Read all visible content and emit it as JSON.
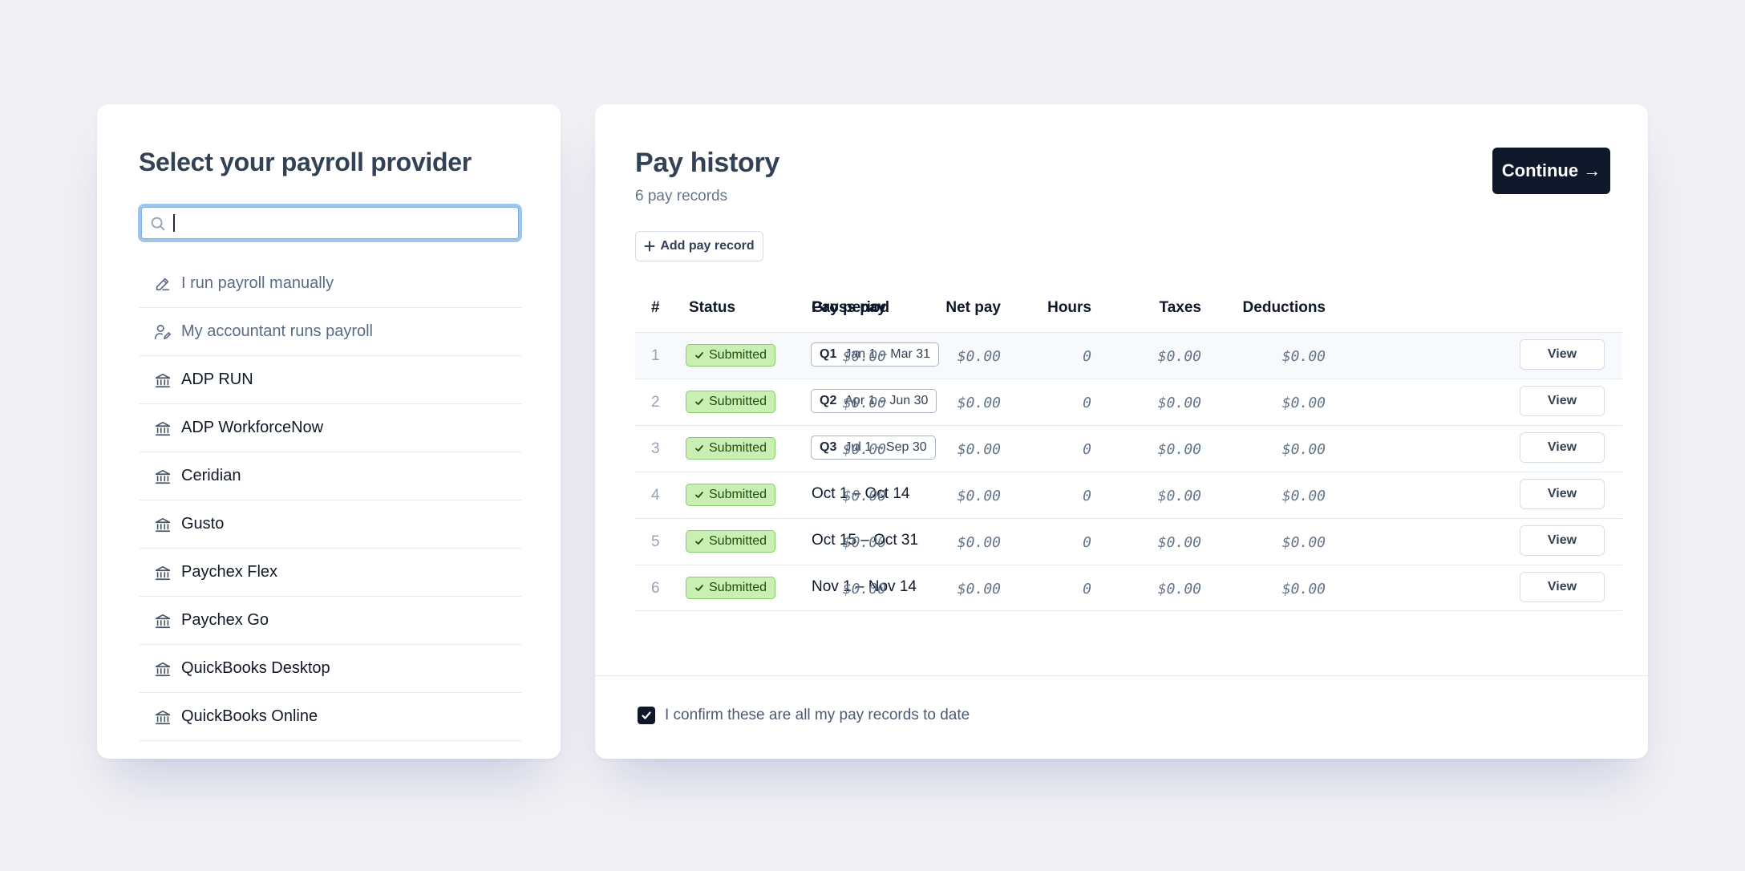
{
  "provider_panel": {
    "title": "Select your payroll provider",
    "search": {
      "value": "",
      "placeholder": ""
    },
    "items": [
      {
        "label": "I run payroll manually",
        "icon": "pencil-icon",
        "muted": true
      },
      {
        "label": "My accountant runs payroll",
        "icon": "user-edit-icon",
        "muted": true
      },
      {
        "label": "ADP RUN",
        "icon": "bank-icon",
        "muted": false
      },
      {
        "label": "ADP WorkforceNow",
        "icon": "bank-icon",
        "muted": false
      },
      {
        "label": "Ceridian",
        "icon": "bank-icon",
        "muted": false
      },
      {
        "label": "Gusto",
        "icon": "bank-icon",
        "muted": false
      },
      {
        "label": "Paychex Flex",
        "icon": "bank-icon",
        "muted": false
      },
      {
        "label": "Paychex Go",
        "icon": "bank-icon",
        "muted": false
      },
      {
        "label": "QuickBooks Desktop",
        "icon": "bank-icon",
        "muted": false
      },
      {
        "label": "QuickBooks Online",
        "icon": "bank-icon",
        "muted": false
      }
    ]
  },
  "history_panel": {
    "title": "Pay history",
    "subtitle": "6 pay records",
    "continue_label": "Continue →",
    "add_label": "Add pay record",
    "columns": [
      "#",
      "Status",
      "Pay period",
      "Gross pay",
      "Net pay",
      "Hours",
      "Taxes",
      "Deductions"
    ],
    "rows": [
      {
        "num": "1",
        "status": "Submitted",
        "quarter": "Q1",
        "period": "Jan 1 – Mar 31",
        "gross": "$0.00",
        "net": "$0.00",
        "hours": "0",
        "taxes": "$0.00",
        "deductions": "$0.00",
        "action": "View"
      },
      {
        "num": "2",
        "status": "Submitted",
        "quarter": "Q2",
        "period": "Apr 1 – Jun 30",
        "gross": "$0.00",
        "net": "$0.00",
        "hours": "0",
        "taxes": "$0.00",
        "deductions": "$0.00",
        "action": "View"
      },
      {
        "num": "3",
        "status": "Submitted",
        "quarter": "Q3",
        "period": "Jul 1 – Sep 30",
        "gross": "$0.00",
        "net": "$0.00",
        "hours": "0",
        "taxes": "$0.00",
        "deductions": "$0.00",
        "action": "View"
      },
      {
        "num": "4",
        "status": "Submitted",
        "quarter": "",
        "period": "Oct 1 – Oct 14",
        "gross": "$0.00",
        "net": "$0.00",
        "hours": "0",
        "taxes": "$0.00",
        "deductions": "$0.00",
        "action": "View"
      },
      {
        "num": "5",
        "status": "Submitted",
        "quarter": "",
        "period": "Oct 15 – Oct 31",
        "gross": "$0.00",
        "net": "$0.00",
        "hours": "0",
        "taxes": "$0.00",
        "deductions": "$0.00",
        "action": "View"
      },
      {
        "num": "6",
        "status": "Submitted",
        "quarter": "",
        "period": "Nov 1 – Nov 14",
        "gross": "$0.00",
        "net": "$0.00",
        "hours": "0",
        "taxes": "$0.00",
        "deductions": "$0.00",
        "action": "View"
      }
    ],
    "confirm": {
      "label": "I confirm these are all my pay records to date",
      "checked": true
    }
  },
  "colors": {
    "page_bg": "#f1f0f4",
    "primary_button": "#0f172a",
    "badge_bg": "#c9efb2",
    "badge_border": "#86cc6a",
    "focus_ring": "#9ec5ea"
  }
}
